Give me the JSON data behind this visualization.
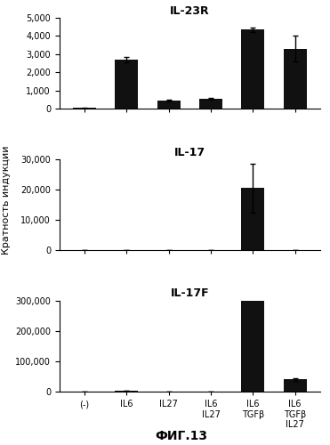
{
  "categories": [
    "(-)",
    "IL6",
    "IL27",
    "IL6\nIL27",
    "IL6\nTGFβ",
    "IL6\nTGFβ\nIL27"
  ],
  "subplot_titles": [
    "IL-23R",
    "IL-17",
    "IL-17F"
  ],
  "bar_color": "#111111",
  "bar_width": 0.55,
  "values": {
    "IL-23R": [
      50,
      2700,
      450,
      550,
      4350,
      3300
    ],
    "IL-17": [
      50,
      50,
      50,
      50,
      20500,
      100
    ],
    "IL-17F": [
      100,
      1500,
      100,
      100,
      320000,
      40000
    ]
  },
  "errors": {
    "IL-23R": [
      30,
      150,
      50,
      50,
      120,
      700
    ],
    "IL-17": [
      0,
      0,
      0,
      0,
      8000,
      0
    ],
    "IL-17F": [
      0,
      0,
      0,
      0,
      0,
      5000
    ]
  },
  "ylims": {
    "IL-23R": [
      0,
      5000
    ],
    "IL-17": [
      0,
      30000
    ],
    "IL-17F": [
      0,
      300000
    ]
  },
  "yticks": {
    "IL-23R": [
      0,
      1000,
      2000,
      3000,
      4000,
      5000
    ],
    "IL-17": [
      0,
      10000,
      20000,
      30000
    ],
    "IL-17F": [
      0,
      100000,
      200000,
      300000
    ]
  },
  "ylabel": "Кратность индукции",
  "xlabel_bottom": "ФИГ.13",
  "background_color": "#ffffff",
  "title_fontsize": 9,
  "tick_fontsize": 7,
  "label_fontsize": 8,
  "ylabel_fontsize": 8
}
